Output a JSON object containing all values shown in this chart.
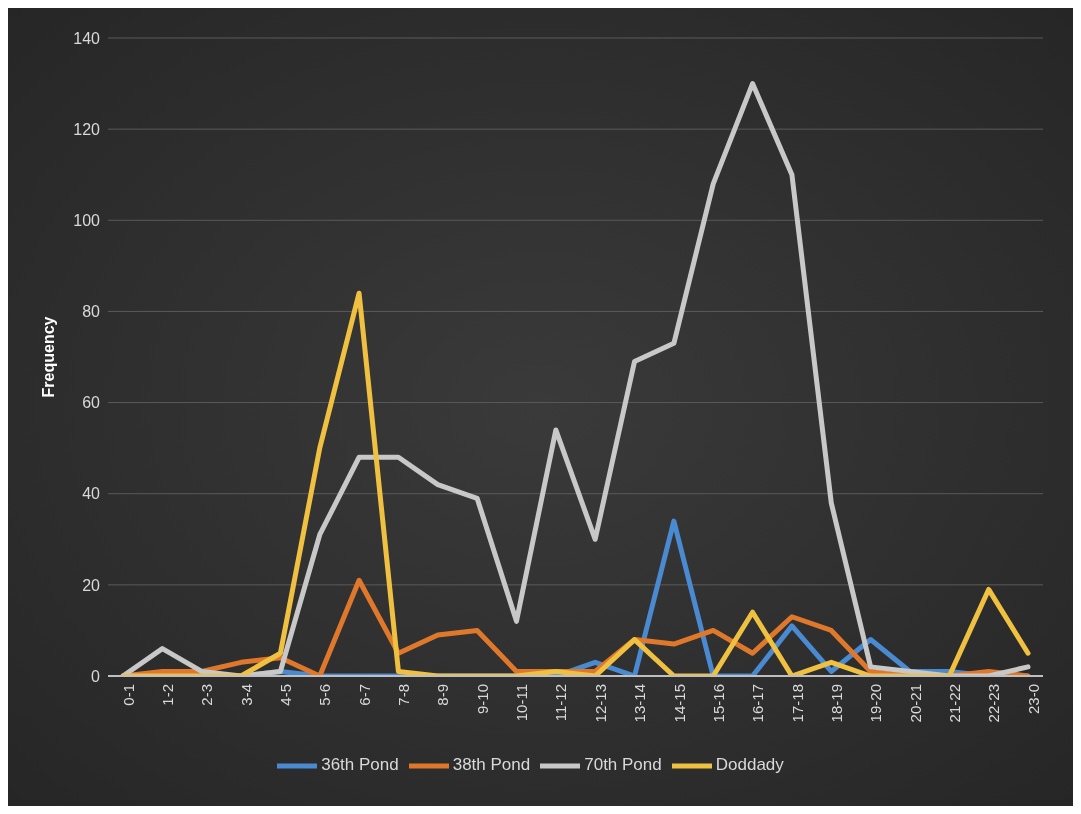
{
  "chart_data": {
    "type": "line",
    "ylabel": "Frequency",
    "categories": [
      "0-1",
      "1-2",
      "2-3",
      "3-4",
      "4-5",
      "5-6",
      "6-7",
      "7-8",
      "8-9",
      "9-10",
      "10-11",
      "11-12",
      "12-13",
      "13-14",
      "14-15",
      "15-16",
      "16-17",
      "17-18",
      "18-19",
      "19-20",
      "20-21",
      "21-22",
      "22-23",
      "23-0"
    ],
    "series": [
      {
        "name": "36th Pond",
        "color": "#4a8ad0",
        "values": [
          null,
          null,
          0,
          0,
          1,
          0,
          0,
          0,
          0,
          0,
          0,
          0,
          3,
          0,
          34,
          0,
          0,
          11,
          1,
          8,
          1,
          1,
          0,
          0
        ]
      },
      {
        "name": "38th Pond",
        "color": "#e0782c",
        "values": [
          0,
          1,
          1,
          3,
          4,
          0,
          21,
          5,
          9,
          10,
          1,
          1,
          1,
          8,
          7,
          10,
          5,
          13,
          10,
          1,
          0,
          0,
          1,
          0
        ]
      },
      {
        "name": "70th Pond",
        "color": "#c8c8c8",
        "values": [
          0,
          6,
          1,
          0,
          1,
          31,
          48,
          48,
          42,
          39,
          12,
          54,
          30,
          69,
          73,
          108,
          130,
          110,
          38,
          2,
          1,
          0,
          0,
          2
        ]
      },
      {
        "name": "Doddady",
        "color": "#f0c040",
        "values": [
          0,
          0,
          0,
          0,
          5,
          50,
          84,
          1,
          0,
          0,
          0,
          1,
          0,
          8,
          0,
          0,
          14,
          0,
          3,
          0,
          0,
          0,
          19,
          5
        ]
      }
    ],
    "ylim": [
      0,
      140
    ],
    "yticks": [
      0,
      20,
      40,
      60,
      80,
      100,
      120,
      140
    ],
    "grid": "y",
    "legend": "bottom",
    "marker": "none",
    "line_style": "solid"
  }
}
